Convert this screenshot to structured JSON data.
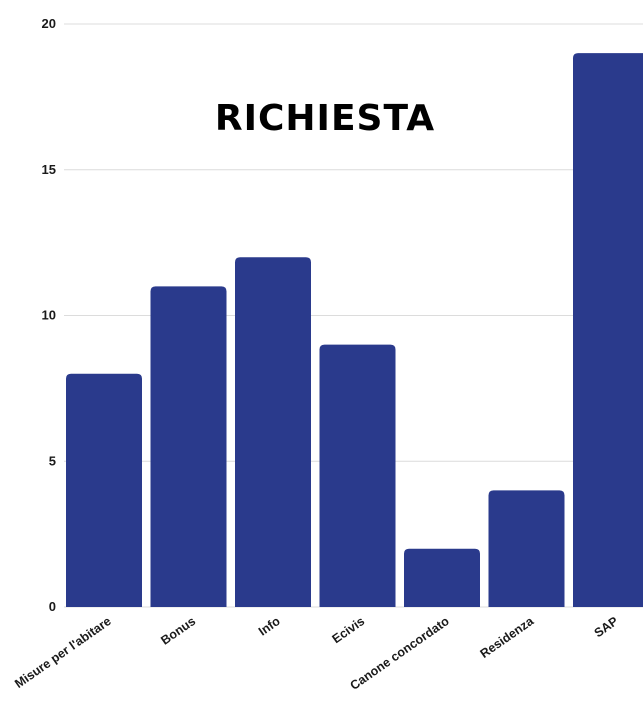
{
  "chart_data": {
    "type": "bar",
    "title": "RICHIESTA",
    "categories": [
      "Misure per l'abitare",
      "Bonus",
      "Info",
      "Ecivis",
      "Canone concordato",
      "Residenza",
      "SAP"
    ],
    "values": [
      8,
      11,
      12,
      9,
      2,
      4,
      19
    ],
    "ylim": [
      0,
      20
    ],
    "yticks": [
      "0",
      "5",
      "10",
      "15",
      "20"
    ],
    "grid": true,
    "bar_color": "#2a3a8c"
  }
}
